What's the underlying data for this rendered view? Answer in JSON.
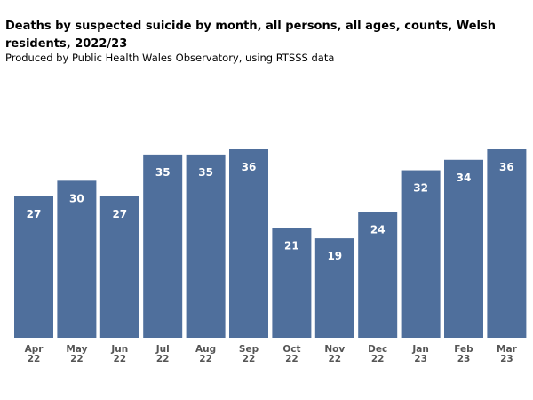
{
  "chart_data": {
    "type": "bar",
    "title": "Deaths by suspected suicide by month, all persons, all ages, counts, Welsh residents, 2022/23",
    "subtitle": "Produced by Public Health Wales Observatory, using RTSSS data",
    "categories": [
      [
        "Apr",
        "22"
      ],
      [
        "May",
        "22"
      ],
      [
        "Jun",
        "22"
      ],
      [
        "Jul",
        "22"
      ],
      [
        "Aug",
        "22"
      ],
      [
        "Sep",
        "22"
      ],
      [
        "Oct",
        "22"
      ],
      [
        "Nov",
        "22"
      ],
      [
        "Dec",
        "22"
      ],
      [
        "Jan",
        "23"
      ],
      [
        "Feb",
        "23"
      ],
      [
        "Mar",
        "23"
      ]
    ],
    "values": [
      27,
      30,
      27,
      35,
      35,
      36,
      21,
      19,
      24,
      32,
      34,
      36
    ],
    "xlabel": "",
    "ylabel": "",
    "ylim": [
      0,
      36
    ],
    "grid": false,
    "bar_color": "#4f6f9c",
    "label_color": "#ffffff",
    "tick_color": "#555555"
  }
}
